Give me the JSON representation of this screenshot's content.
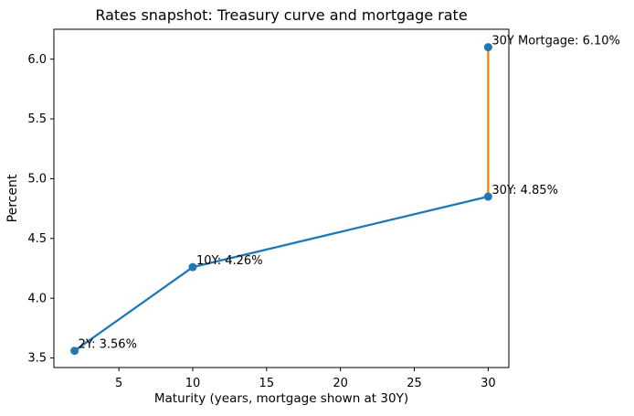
{
  "chart_data": {
    "type": "line",
    "title": "Rates snapshot: Treasury curve and mortgage rate",
    "xlabel": "Maturity (years, mortgage shown at 30Y)",
    "ylabel": "Percent",
    "xlim": [
      0.6,
      31.4
    ],
    "ylim": [
      3.42,
      6.25
    ],
    "x_ticks": [
      5,
      10,
      15,
      20,
      25,
      30
    ],
    "y_ticks": [
      3.5,
      4.0,
      4.5,
      5.0,
      5.5,
      6.0
    ],
    "grid": false,
    "legend": null,
    "colors": {
      "treasury_line": "#1f77b4",
      "mortgage_link_line": "#ff7f0e",
      "marker": "#1f77b4",
      "spine": "#000000",
      "text": "#000000",
      "background": "#ffffff"
    },
    "series": [
      {
        "name": "treasury-curve",
        "x": [
          2,
          10,
          30
        ],
        "y": [
          3.56,
          4.26,
          4.85
        ],
        "color": "#1f77b4",
        "line": true,
        "marker": true
      },
      {
        "name": "mortgage-link",
        "x": [
          30,
          30
        ],
        "y": [
          4.85,
          6.1
        ],
        "color": "#ff7f0e",
        "line": true,
        "marker": false
      },
      {
        "name": "mortgage-point",
        "x": [
          30
        ],
        "y": [
          6.1
        ],
        "color": "#1f77b4",
        "line": false,
        "marker": true
      }
    ],
    "annotations": [
      {
        "text": "2Y: 3.56%",
        "x": 2,
        "y": 3.56
      },
      {
        "text": "10Y: 4.26%",
        "x": 10,
        "y": 4.26
      },
      {
        "text": "30Y: 4.85%",
        "x": 30,
        "y": 4.85
      },
      {
        "text": "30Y Mortgage: 6.10%",
        "x": 30,
        "y": 6.1
      }
    ]
  }
}
